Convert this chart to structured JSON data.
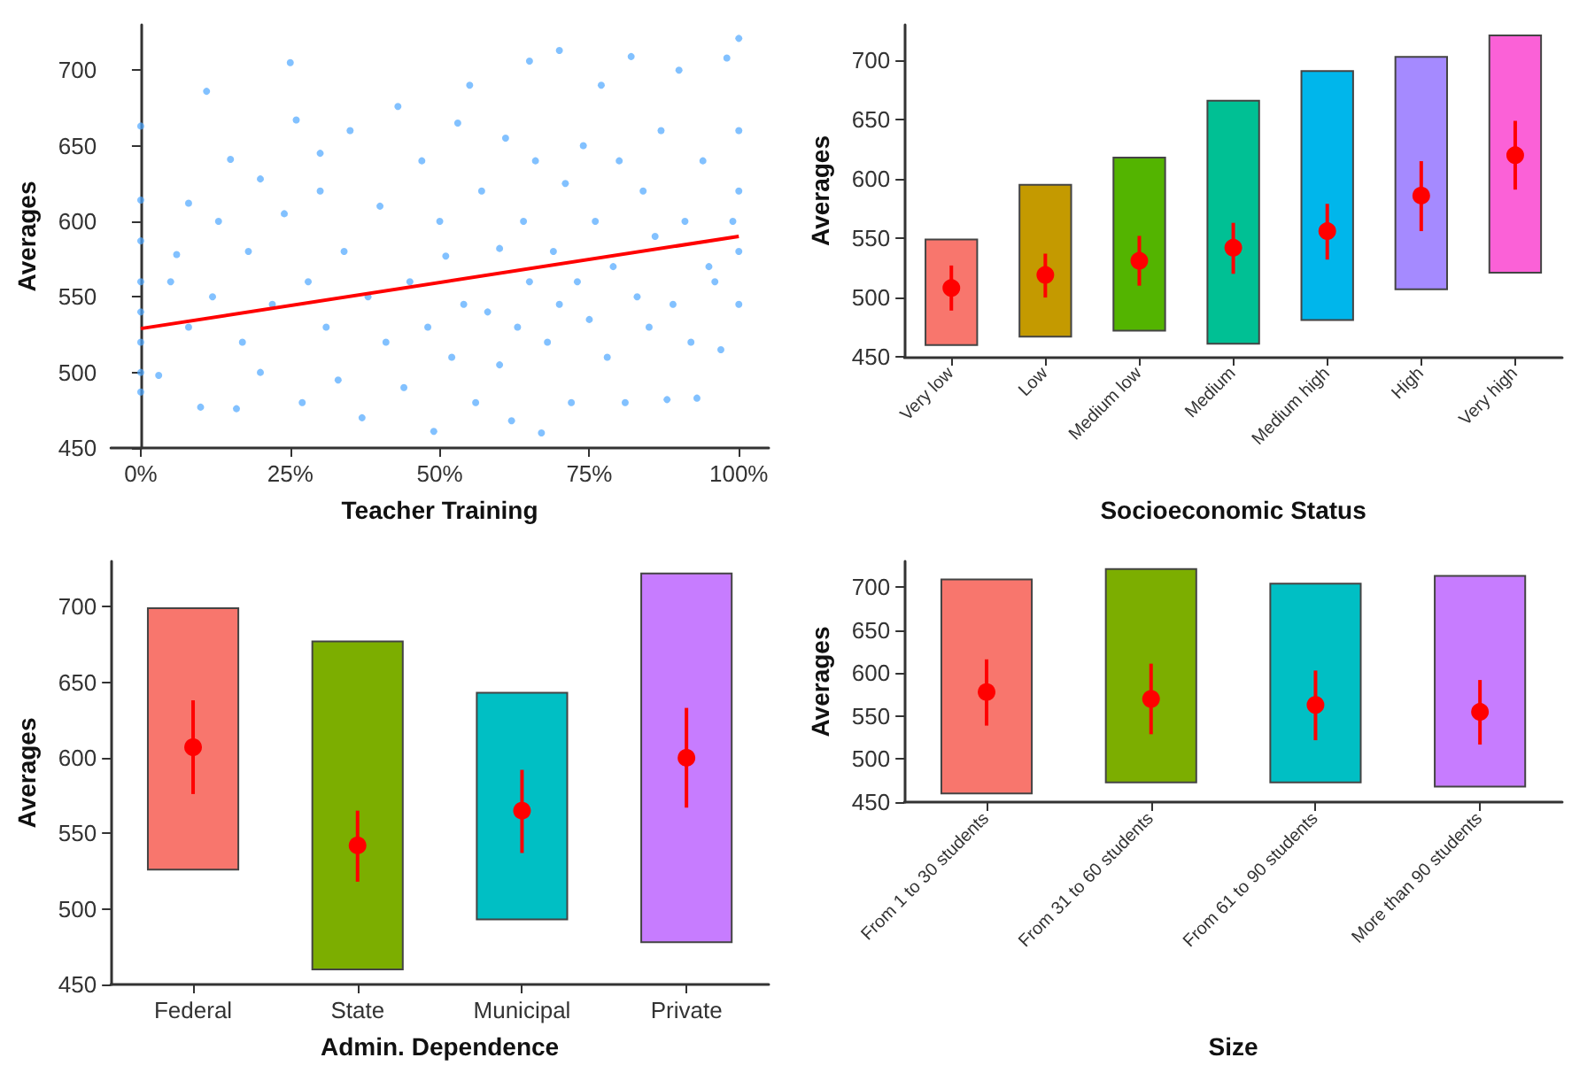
{
  "chart_data": [
    {
      "type": "scatter",
      "xlabel": "Teacher Training",
      "ylabel": "Averages",
      "xlim": [
        -5,
        105
      ],
      "xticks": [
        {
          "value": 0,
          "label": "0%"
        },
        {
          "value": 25,
          "label": "25%"
        },
        {
          "value": 50,
          "label": "50%"
        },
        {
          "value": 75,
          "label": "75%"
        },
        {
          "value": 100,
          "label": "100%"
        }
      ],
      "ylim": [
        450,
        730
      ],
      "yticks": [
        450,
        500,
        550,
        600,
        650,
        700
      ],
      "grid": false,
      "series": [
        {
          "color": "#4da6ff",
          "marker": "circle",
          "x": [
            0,
            0,
            0,
            0,
            0,
            0,
            0,
            0,
            3,
            5,
            6,
            8,
            8,
            10,
            11,
            12,
            13,
            15,
            16,
            17,
            18,
            20,
            20,
            22,
            24,
            25,
            26,
            27,
            28,
            30,
            30,
            31,
            33,
            34,
            35,
            37,
            38,
            40,
            41,
            43,
            44,
            45,
            47,
            48,
            49,
            50,
            51,
            52,
            53,
            54,
            55,
            56,
            57,
            58,
            60,
            60,
            61,
            62,
            63,
            64,
            65,
            65,
            66,
            67,
            68,
            69,
            70,
            70,
            71,
            72,
            73,
            74,
            75,
            76,
            77,
            78,
            79,
            80,
            81,
            82,
            83,
            84,
            85,
            86,
            87,
            88,
            89,
            90,
            91,
            92,
            93,
            94,
            95,
            96,
            97,
            98,
            99,
            100,
            100,
            100,
            100,
            100
          ],
          "values": [
            663,
            614,
            587,
            560,
            540,
            520,
            500,
            487,
            498,
            560,
            578,
            612,
            530,
            477,
            686,
            550,
            600,
            641,
            476,
            520,
            580,
            628,
            500,
            545,
            605,
            705,
            667,
            480,
            560,
            620,
            645,
            530,
            495,
            580,
            660,
            470,
            550,
            610,
            520,
            676,
            490,
            560,
            640,
            530,
            461,
            600,
            577,
            510,
            665,
            545,
            690,
            480,
            620,
            540,
            582,
            505,
            655,
            468,
            530,
            600,
            706,
            560,
            640,
            460,
            520,
            580,
            713,
            545,
            625,
            480,
            560,
            650,
            535,
            600,
            690,
            510,
            570,
            640,
            480,
            709,
            550,
            620,
            530,
            590,
            660,
            482,
            545,
            700,
            600,
            520,
            483,
            640,
            570,
            560,
            515,
            708,
            600,
            721,
            660,
            620,
            580,
            545
          ]
        },
        {
          "type": "line",
          "color": "#ff0000",
          "marker": "none",
          "x": [
            0,
            100
          ],
          "values": [
            529,
            590
          ]
        }
      ]
    },
    {
      "type": "bar",
      "xlabel": "Socioeconomic Status",
      "ylabel": "Averages",
      "categories": [
        "Very low",
        "Low",
        "Medium low",
        "Medium",
        "Medium high",
        "High",
        "Very high"
      ],
      "ylim": [
        450,
        730
      ],
      "yticks": [
        450,
        500,
        550,
        600,
        650,
        700
      ],
      "grid": false,
      "series": [
        {
          "base": [
            460,
            467,
            472,
            461,
            481,
            507,
            521
          ],
          "values": [
            89,
            128,
            146,
            205,
            210,
            196,
            200
          ],
          "colors": [
            "#f8766d",
            "#c49a00",
            "#53b400",
            "#00c094",
            "#00b6eb",
            "#a58aff",
            "#fb61d7"
          ]
        },
        {
          "type": "scatter",
          "color": "#ff0000",
          "marker": "circle",
          "x": [
            "Very low",
            "Low",
            "Medium low",
            "Medium",
            "Medium high",
            "High",
            "Very high"
          ],
          "values": [
            508,
            519,
            531,
            542,
            556,
            586,
            620
          ],
          "errors": [
            [
              489,
              527
            ],
            [
              500,
              537
            ],
            [
              510,
              552
            ],
            [
              520,
              563
            ],
            [
              532,
              579
            ],
            [
              556,
              615
            ],
            [
              591,
              649
            ]
          ]
        }
      ]
    },
    {
      "type": "bar",
      "xlabel": "Admin. Dependence",
      "ylabel": "Averages",
      "categories": [
        "Federal",
        "State",
        "Municipal",
        "Private"
      ],
      "ylim": [
        450,
        730
      ],
      "yticks": [
        450,
        500,
        550,
        600,
        650,
        700
      ],
      "grid": false,
      "series": [
        {
          "base": [
            526,
            460,
            493,
            478
          ],
          "values": [
            173,
            217,
            150,
            244
          ],
          "colors": [
            "#f8766d",
            "#7cae00",
            "#00bfc4",
            "#c77cff"
          ]
        },
        {
          "type": "scatter",
          "color": "#ff0000",
          "marker": "circle",
          "x": [
            "Federal",
            "State",
            "Municipal",
            "Private"
          ],
          "values": [
            607,
            542,
            565,
            600
          ],
          "errors": [
            [
              576,
              638
            ],
            [
              518,
              565
            ],
            [
              537,
              592
            ],
            [
              567,
              633
            ]
          ]
        }
      ]
    },
    {
      "type": "bar",
      "xlabel": "Size",
      "ylabel": "Averages",
      "categories": [
        "From 1 to 30 students",
        "From 31 to 60 students",
        "From 61 to 90 students",
        "More than 90 students"
      ],
      "ylim": [
        450,
        730
      ],
      "yticks": [
        450,
        500,
        550,
        600,
        650,
        700
      ],
      "grid": false,
      "series": [
        {
          "base": [
            460,
            473,
            473,
            468
          ],
          "values": [
            249,
            248,
            231,
            245
          ],
          "colors": [
            "#f8766d",
            "#7cae00",
            "#00bfc4",
            "#c77cff"
          ]
        },
        {
          "type": "scatter",
          "color": "#ff0000",
          "marker": "circle",
          "x": [
            "From 1 to 30 students",
            "From 31 to 60 students",
            "From 61 to 90 students",
            "More than 90 students"
          ],
          "values": [
            578,
            570,
            563,
            555
          ],
          "errors": [
            [
              539,
              616
            ],
            [
              529,
              611
            ],
            [
              522,
              603
            ],
            [
              517,
              592
            ]
          ]
        }
      ]
    }
  ]
}
